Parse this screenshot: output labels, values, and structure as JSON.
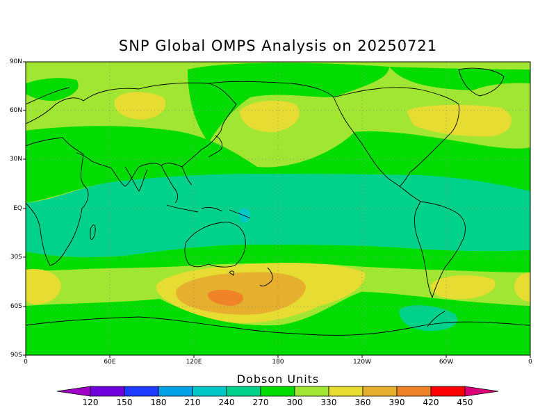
{
  "title": "SNP Global OMPS Analysis on 20250721",
  "lat_labels": [
    "90N",
    "60N",
    "30N",
    "EQ",
    "30S",
    "60S",
    "90S"
  ],
  "lon_labels": [
    "0",
    "60E",
    "120E",
    "180",
    "120W",
    "60W",
    "0"
  ],
  "colorbar": {
    "title": "Dobson Units",
    "levels": [
      "120",
      "150",
      "180",
      "210",
      "240",
      "270",
      "300",
      "330",
      "360",
      "390",
      "420",
      "450"
    ],
    "colors": [
      "#a000c8",
      "#6e00dc",
      "#1e3cff",
      "#00a0e6",
      "#00c8c8",
      "#00d28c",
      "#00dc00",
      "#a0e632",
      "#e6dc32",
      "#e6af2d",
      "#f08228",
      "#fa0000",
      "#dc0078"
    ]
  },
  "colors": {
    "band_270_300": "#00d28c",
    "band_300_330": "#00dc00",
    "band_330_360": "#a0e632",
    "band_360_390": "#e6dc32",
    "band_390_420": "#e6af2d",
    "band_420_450": "#f08228",
    "band_240_270": "#00c8c8"
  }
}
